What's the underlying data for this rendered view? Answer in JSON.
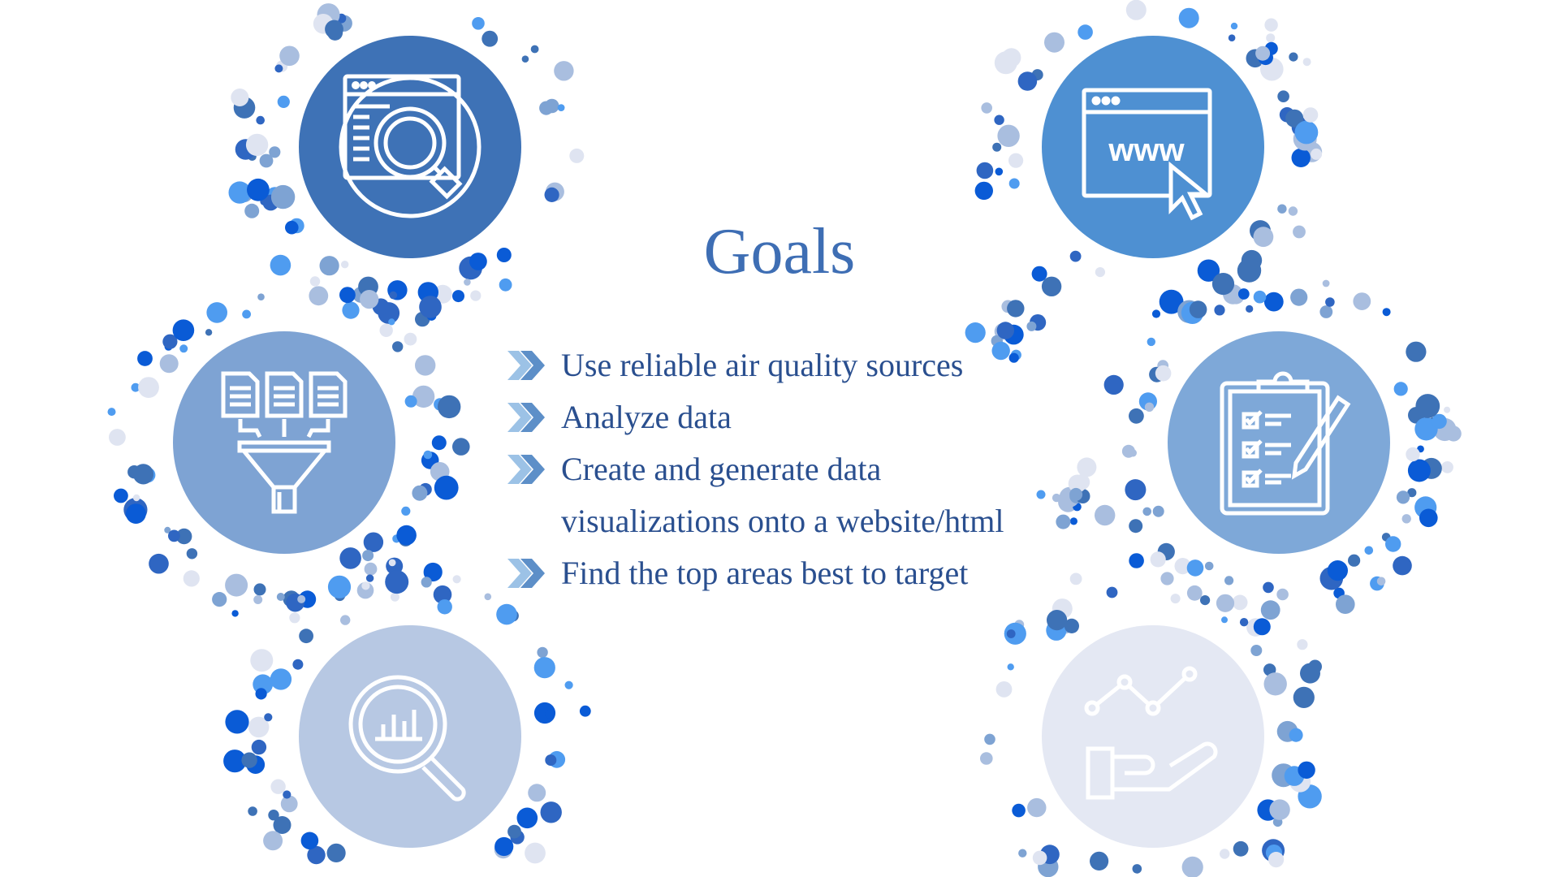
{
  "slide": {
    "title": "Goals",
    "goals": [
      {
        "lines": [
          "Use reliable air quality sources"
        ]
      },
      {
        "lines": [
          "Analyze data"
        ]
      },
      {
        "lines": [
          "Create and generate data",
          "visualizations onto a website/html"
        ]
      },
      {
        "lines": [
          "Find the top areas best to target"
        ]
      }
    ],
    "icons": {
      "top_left": "web-search-icon",
      "middle_left": "document-funnel-icon",
      "bottom_left": "analytics-magnifier-icon",
      "top_right": "www-browser-icon",
      "middle_right": "clipboard-checklist-icon",
      "bottom_right": "growth-chart-hand-icon"
    },
    "www_label": "www",
    "colors": {
      "dark_blue": "#3e72b6",
      "medium_blue": "#4e90d2",
      "light_blue": "#7ea3d3",
      "pale_blue": "#b7c8e3",
      "very_pale_blue": "#e4e8f3",
      "title_blue": "#3e6eb4",
      "text_blue": "#2a4f8f"
    }
  }
}
